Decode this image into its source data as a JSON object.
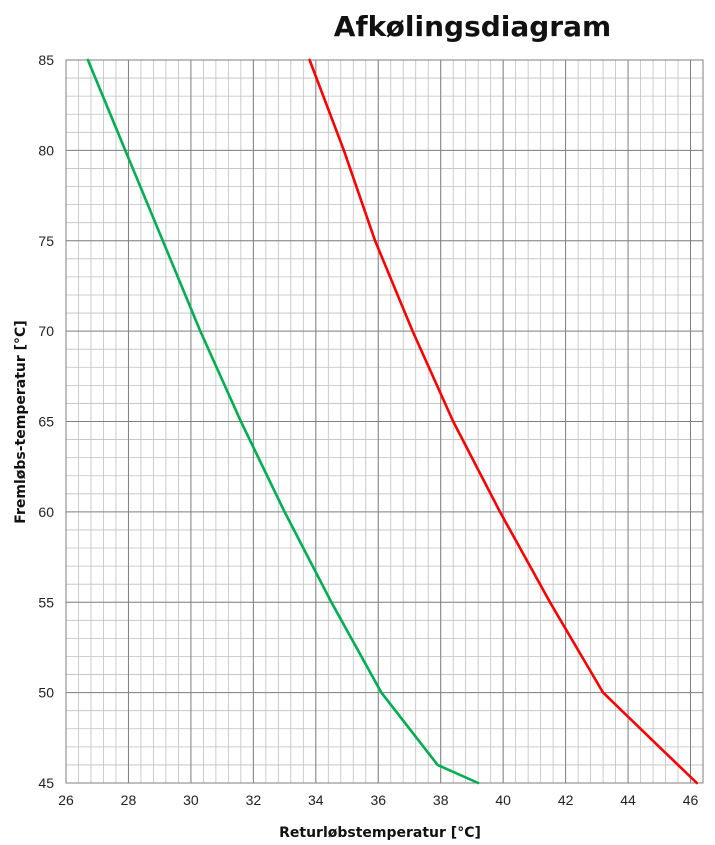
{
  "chart_data": {
    "type": "line",
    "title": "Afkølingsdiagram",
    "xlabel": "Returløbstemperatur [°C]",
    "ylabel": "Fremløbs-temperatur [°C]",
    "xlim": [
      26,
      46.4
    ],
    "ylim": [
      45,
      85
    ],
    "xticks": [
      26,
      28,
      30,
      32,
      34,
      36,
      38,
      40,
      42,
      44,
      46
    ],
    "yticks": [
      45,
      50,
      55,
      60,
      65,
      70,
      75,
      80,
      85
    ],
    "minor_grid_step": {
      "x": 0.4,
      "y": 1
    },
    "grid": true,
    "series": [
      {
        "color": "#00b050",
        "points": [
          [
            26.7,
            85
          ],
          [
            27.9,
            80
          ],
          [
            29.1,
            75
          ],
          [
            30.3,
            70
          ],
          [
            31.6,
            65
          ],
          [
            33.0,
            60
          ],
          [
            34.5,
            55
          ],
          [
            36.1,
            50
          ],
          [
            37.9,
            46
          ],
          [
            39.2,
            45
          ]
        ]
      },
      {
        "color": "#ff0000",
        "points": [
          [
            33.8,
            85
          ],
          [
            34.9,
            80
          ],
          [
            35.9,
            75
          ],
          [
            37.1,
            70
          ],
          [
            38.4,
            65
          ],
          [
            39.9,
            60
          ],
          [
            41.5,
            55
          ],
          [
            43.2,
            50
          ],
          [
            45.0,
            47
          ],
          [
            46.2,
            45
          ]
        ]
      }
    ]
  }
}
